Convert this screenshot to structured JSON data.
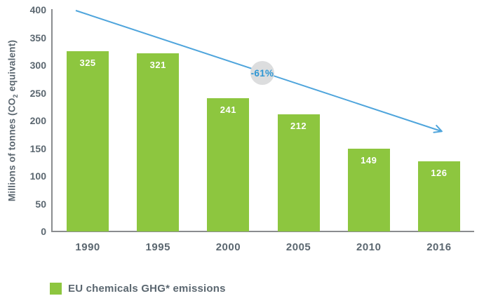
{
  "chart_data": {
    "type": "bar",
    "categories": [
      "1990",
      "1995",
      "2000",
      "2005",
      "2010",
      "2016"
    ],
    "values": [
      325,
      321,
      241,
      212,
      149,
      126
    ],
    "bar_labels": [
      "325",
      "321",
      "241",
      "212",
      "149",
      "126"
    ],
    "title": "",
    "xlabel": "",
    "ylabel": "Millions of tonnes (CO2 equivalent)",
    "ylabel_parts": {
      "prefix": "Millions of tonnes (CO",
      "sub": "2",
      "suffix": " equivalent)"
    },
    "ylim": [
      0,
      400
    ],
    "yticks": [
      0,
      50,
      100,
      150,
      200,
      250,
      300,
      350,
      400
    ],
    "grid": false,
    "legend_position": "bottom",
    "legend": [
      {
        "label": "EU chemicals GHG* emissions",
        "color": "#8dc63f"
      }
    ],
    "annotation": {
      "text": "-61%",
      "meaning": "overall decline shown by trend arrow"
    },
    "trend_arrow": {
      "direction": "down-right"
    }
  },
  "colors": {
    "bar_green": "#8dc63f",
    "arrow_blue": "#4fa5dc",
    "annotation_circle_fill": "#dcddde",
    "annotation_text_blue": "#2f97d4",
    "axis_gray": "#8a8c8f",
    "label_gray": "#5b6770",
    "bar_value_label": "#ffffff",
    "background": "#ffffff"
  }
}
